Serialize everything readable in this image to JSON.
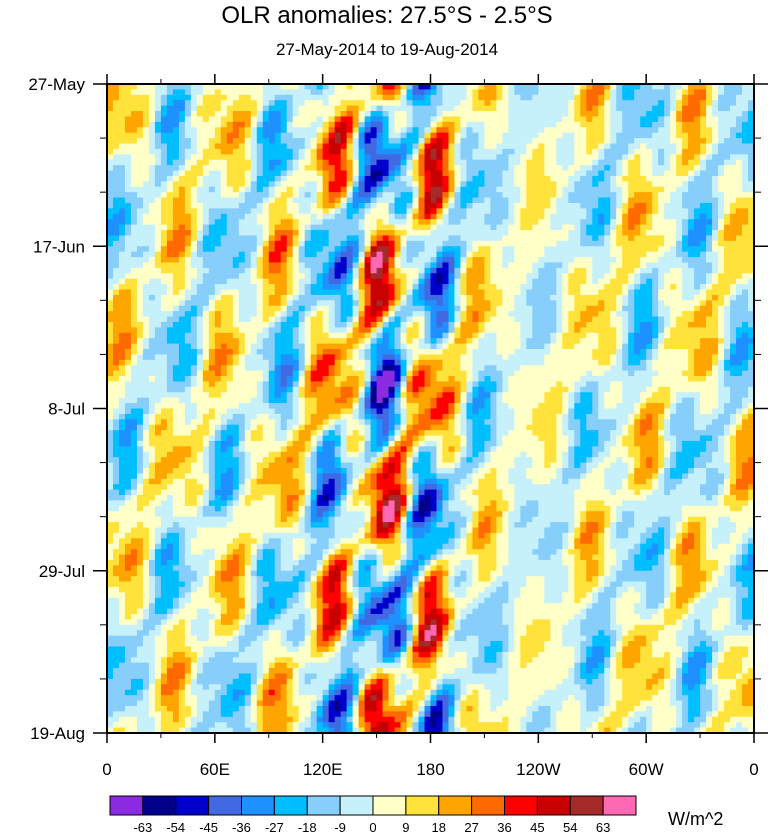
{
  "chart_data": {
    "type": "heatmap",
    "title": "OLR anomalies: 27.5°S - 2.5°S",
    "subtitle": "27-May-2014 to 19-Aug-2014",
    "xlabel": "",
    "ylabel": "",
    "x_ticks": [
      "0",
      "60E",
      "120E",
      "180",
      "120W",
      "60W",
      "0"
    ],
    "x_tick_values": [
      0,
      60,
      120,
      180,
      240,
      300,
      360
    ],
    "y_ticks": [
      "27-May",
      "17-Jun",
      "8-Jul",
      "29-Jul",
      "19-Aug"
    ],
    "y_tick_days": [
      0,
      21,
      42,
      63,
      84
    ],
    "xlim": [
      0,
      360
    ],
    "units": "W/m^2",
    "levels": [
      -63,
      -54,
      -45,
      -36,
      -27,
      -18,
      -9,
      0,
      9,
      18,
      27,
      36,
      45,
      54,
      63
    ],
    "colors": [
      "#8A2BE2",
      "#00008B",
      "#0000CD",
      "#4169E1",
      "#1E90FF",
      "#00BFFF",
      "#87CEFA",
      "#C6F0FA",
      "#FFFFC8",
      "#FFE23A",
      "#FFA500",
      "#FF6A00",
      "#FF0000",
      "#C80000",
      "#A52A2A",
      "#FF69B4"
    ],
    "missing_color": "#C0C0C0"
  }
}
